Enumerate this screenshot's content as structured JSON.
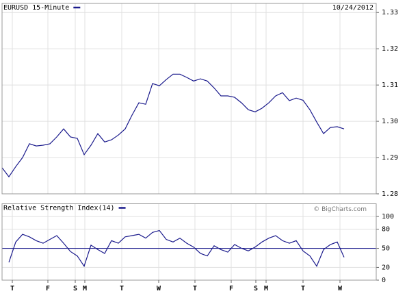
{
  "chart_data": [
    {
      "type": "line",
      "title": "EURUSD 15-Minute",
      "date": "10/24/2012",
      "color": "#1a1a8c",
      "grid": true,
      "xlim": [
        0,
        54.7
      ],
      "ylim": [
        1.28,
        1.3325
      ],
      "yticks": [
        1.28,
        1.29,
        1.3,
        1.31,
        1.32,
        1.33
      ],
      "values": [
        1.2872,
        1.2847,
        1.2875,
        1.29,
        1.2938,
        1.2932,
        1.2934,
        1.2938,
        1.2957,
        1.2979,
        1.2957,
        1.2953,
        1.2908,
        1.2934,
        1.2966,
        1.2943,
        1.2949,
        1.2962,
        1.2979,
        1.3017,
        1.3051,
        1.3047,
        1.3104,
        1.3098,
        1.3115,
        1.313,
        1.313,
        1.3121,
        1.3111,
        1.3117,
        1.3111,
        1.3092,
        1.307,
        1.307,
        1.3066,
        1.3051,
        1.3032,
        1.3026,
        1.3036,
        1.3051,
        1.307,
        1.3079,
        1.3057,
        1.3064,
        1.3058,
        1.3032,
        1.2998,
        1.2966,
        1.2983,
        1.2985,
        1.2979
      ]
    },
    {
      "type": "line",
      "title": "Relative Strength Index(14)",
      "credit": "© BigCharts.com",
      "color": "#1a1a8c",
      "grid": true,
      "xlim": [
        0,
        54.7
      ],
      "ylim": [
        0,
        120
      ],
      "yticks": [
        0,
        20,
        50,
        80,
        100
      ],
      "reference": 50,
      "xticks": [
        {
          "value": 1.5,
          "label": "T"
        },
        {
          "value": 6.7,
          "label": "F"
        },
        {
          "value": 10.7,
          "label": "S"
        },
        {
          "value": 12.1,
          "label": "M"
        },
        {
          "value": 17.5,
          "label": "T"
        },
        {
          "value": 22.9,
          "label": "W"
        },
        {
          "value": 28.2,
          "label": "T"
        },
        {
          "value": 33.5,
          "label": "F"
        },
        {
          "value": 37.1,
          "label": "S"
        },
        {
          "value": 38.6,
          "label": "M"
        },
        {
          "value": 44,
          "label": "T"
        },
        {
          "value": 49.4,
          "label": "W"
        }
      ],
      "values": [
        null,
        28,
        60,
        72,
        68,
        62,
        58,
        64,
        70,
        58,
        45,
        38,
        22,
        55,
        48,
        42,
        62,
        58,
        68,
        70,
        72,
        66,
        75,
        78,
        64,
        60,
        66,
        58,
        52,
        42,
        38,
        54,
        48,
        44,
        56,
        50,
        46,
        52,
        60,
        66,
        70,
        62,
        58,
        62,
        46,
        38,
        22,
        48,
        56,
        60,
        36
      ]
    }
  ]
}
